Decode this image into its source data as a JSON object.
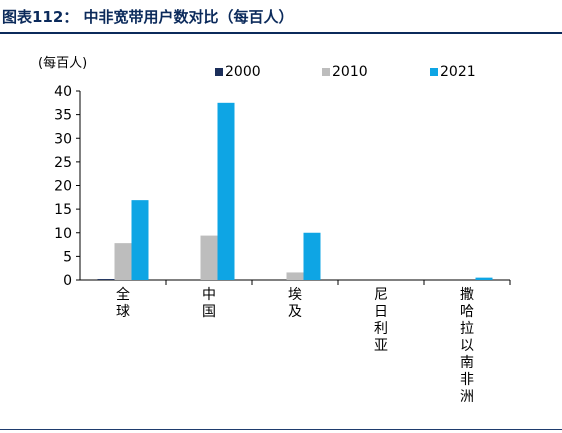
{
  "figure": {
    "title": "图表112：  中非宽带用户数对比（每百人）"
  },
  "chart_data": {
    "type": "bar",
    "unit_label": "(每百人)",
    "categories": [
      "全球",
      "中国",
      "埃及",
      "尼日利亚",
      "撒哈拉以南非洲"
    ],
    "series": [
      {
        "name": "2000",
        "color": "#1b2e5a",
        "values": [
          0.2,
          0.0,
          0.0,
          0.0,
          0.0
        ]
      },
      {
        "name": "2010",
        "color": "#bdbdbd",
        "values": [
          7.8,
          9.4,
          1.6,
          0.0,
          0.0
        ]
      },
      {
        "name": "2021",
        "color": "#0ea5e4",
        "values": [
          16.9,
          37.5,
          10.0,
          0.0,
          0.5
        ]
      }
    ],
    "ylim": [
      0,
      40
    ],
    "yticks": [
      0,
      5,
      10,
      15,
      20,
      25,
      30,
      35,
      40
    ],
    "xlabel": "",
    "ylabel": "",
    "grid": false,
    "legend_position": "top"
  }
}
